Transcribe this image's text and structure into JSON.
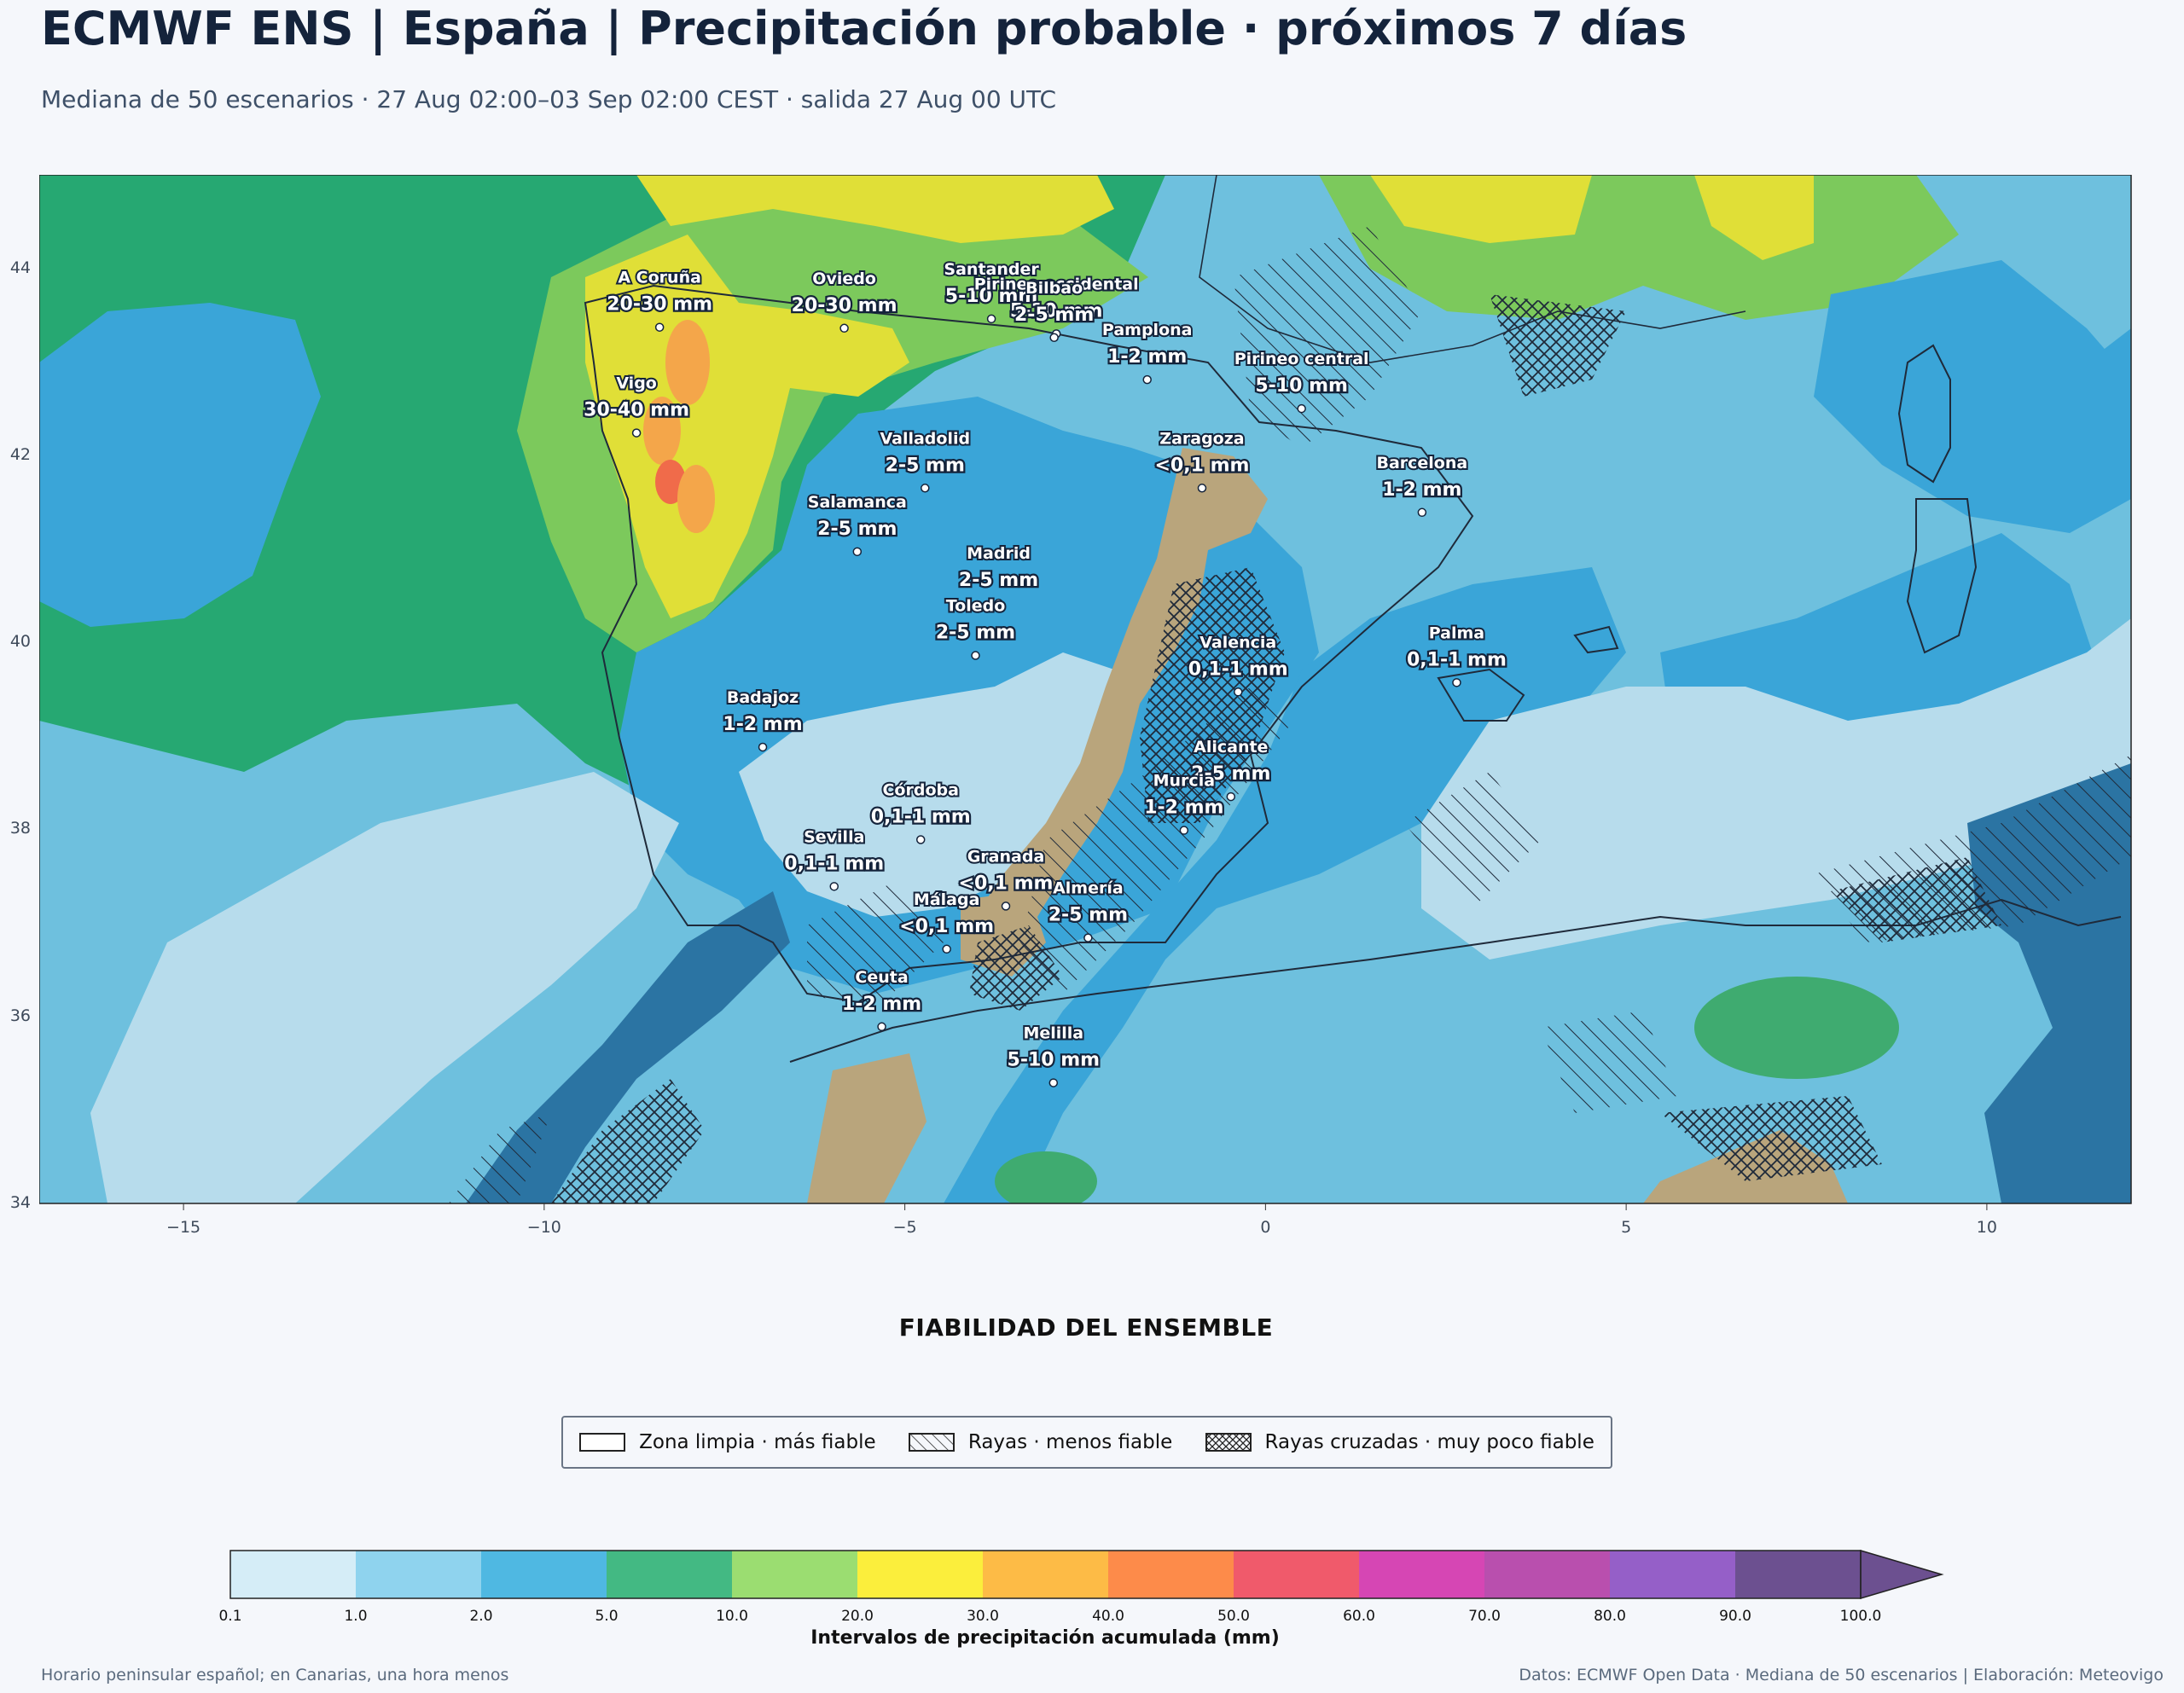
{
  "title": "ECMWF ENS | España | Precipitación probable · próximos 7 días",
  "subtitle": "Mediana de 50 escenarios · 27 Aug 02:00–03 Sep 02:00 CEST · salida 27 Aug 00 UTC",
  "map": {
    "x_ticks": [
      {
        "value": -15,
        "label": "−15"
      },
      {
        "value": -10,
        "label": "−10"
      },
      {
        "value": -5,
        "label": "−5"
      },
      {
        "value": 0,
        "label": "0"
      },
      {
        "value": 5,
        "label": "5"
      },
      {
        "value": 10,
        "label": "10"
      }
    ],
    "y_ticks": [
      {
        "value": 44,
        "label": "44"
      },
      {
        "value": 42,
        "label": "42"
      },
      {
        "value": 40,
        "label": "40"
      },
      {
        "value": 38,
        "label": "38"
      },
      {
        "value": 36,
        "label": "36"
      },
      {
        "value": 34,
        "label": "34"
      }
    ],
    "lon_range": [
      -17,
      12
    ],
    "lat_range": [
      34,
      45
    ],
    "cities": [
      {
        "name": "A Coruña",
        "value": "20-30 mm",
        "lon": -8.4,
        "lat": 43.37
      },
      {
        "name": "Oviedo",
        "value": "20-30 mm",
        "lon": -5.84,
        "lat": 43.36
      },
      {
        "name": "Santander",
        "value": "5-10 mm",
        "lon": -3.8,
        "lat": 43.46
      },
      {
        "name": "Pirineo occidental",
        "value": "5-10 mm",
        "lon": -2.9,
        "lat": 43.3
      },
      {
        "name": "Pamplona",
        "value": "1-2 mm",
        "lon": -1.64,
        "lat": 42.81
      },
      {
        "name": "Pirineo central",
        "value": "5-10 mm",
        "lon": 0.5,
        "lat": 42.5
      },
      {
        "name": "Bilbao",
        "value": "2-5 mm",
        "lon": -2.93,
        "lat": 43.26
      },
      {
        "name": "Vigo",
        "value": "30-40 mm",
        "lon": -8.72,
        "lat": 42.24
      },
      {
        "name": "Valladolid",
        "value": "2-5 mm",
        "lon": -4.72,
        "lat": 41.65
      },
      {
        "name": "Zaragoza",
        "value": "<0,1 mm",
        "lon": -0.88,
        "lat": 41.65
      },
      {
        "name": "Barcelona",
        "value": "1-2 mm",
        "lon": 2.17,
        "lat": 41.39
      },
      {
        "name": "Salamanca",
        "value": "2-5 mm",
        "lon": -5.66,
        "lat": 40.97
      },
      {
        "name": "Madrid",
        "value": "2-5 mm",
        "lon": -3.7,
        "lat": 40.42
      },
      {
        "name": "Valencia",
        "value": "0,1-1 mm",
        "lon": -0.38,
        "lat": 39.47
      },
      {
        "name": "Badajoz",
        "value": "1-2 mm",
        "lon": -6.97,
        "lat": 38.88
      },
      {
        "name": "Toledo",
        "value": "2-5 mm",
        "lon": -4.02,
        "lat": 39.86
      },
      {
        "name": "Palma",
        "value": "0,1-1 mm",
        "lon": 2.65,
        "lat": 39.57
      },
      {
        "name": "Córdoba",
        "value": "0,1-1 mm",
        "lon": -4.78,
        "lat": 37.89
      },
      {
        "name": "Alicante",
        "value": "2-5 mm",
        "lon": -0.48,
        "lat": 38.35
      },
      {
        "name": "Murcia",
        "value": "1-2 mm",
        "lon": -1.13,
        "lat": 37.99
      },
      {
        "name": "Granada",
        "value": "<0,1 mm",
        "lon": -3.6,
        "lat": 37.18
      },
      {
        "name": "Sevilla",
        "value": "0,1-1 mm",
        "lon": -5.98,
        "lat": 37.39
      },
      {
        "name": "Almería",
        "value": "2-5 mm",
        "lon": -2.46,
        "lat": 36.84
      },
      {
        "name": "Málaga",
        "value": "<0,1 mm",
        "lon": -4.42,
        "lat": 36.72
      },
      {
        "name": "Ceuta",
        "value": "1-2 mm",
        "lon": -5.32,
        "lat": 35.89
      },
      {
        "name": "Melilla",
        "value": "5-10 mm",
        "lon": -2.94,
        "lat": 35.29
      }
    ]
  },
  "reliability": {
    "title": "FIABILIDAD DEL ENSEMBLE",
    "items": [
      {
        "pattern": "none",
        "label": "Zona limpia · más fiable"
      },
      {
        "pattern": "stripes",
        "label": "Rayas · menos fiable"
      },
      {
        "pattern": "crosshatch",
        "label": "Rayas cruzadas · muy poco fiable"
      }
    ]
  },
  "colorbar": {
    "title": "Intervalos de precipitación acumulada (mm)",
    "ticks": [
      "0.1",
      "1.0",
      "2.0",
      "5.0",
      "10.0",
      "20.0",
      "30.0",
      "40.0",
      "50.0",
      "60.0",
      "70.0",
      "80.0",
      "90.0",
      "100.0"
    ],
    "colors": [
      "#d5edf7",
      "#8fd3ee",
      "#4fb8e2",
      "#43b983",
      "#9bdd71",
      "#fbee3c",
      "#fdbb46",
      "#fd8b4a",
      "#f05a6b",
      "#d646b4",
      "#b94fae",
      "#955fc8",
      "#6c5090"
    ]
  },
  "footer": {
    "left": "Horario peninsular español; en Canarias, una hora menos",
    "right": "Datos: ECMWF Open Data · Mediana de 50 escenarios | Elaboración: Meteovigo"
  }
}
